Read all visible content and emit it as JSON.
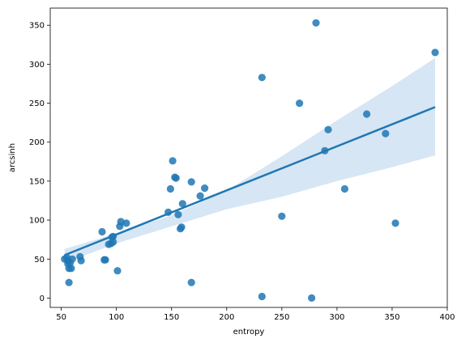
{
  "chart_data": {
    "type": "scatter",
    "xlabel": "entropy",
    "ylabel": "arcsinh",
    "xlim": [
      40,
      400
    ],
    "ylim": [
      -12,
      372
    ],
    "xticks": [
      50,
      100,
      150,
      200,
      250,
      300,
      350,
      400
    ],
    "yticks": [
      0,
      50,
      100,
      150,
      200,
      250,
      300,
      350
    ],
    "grid": false,
    "colors": {
      "points": "#1f77b4",
      "regression_line": "#1f77b4",
      "confidence_band": "#c6dbef"
    },
    "points": [
      {
        "x": 53,
        "y": 50
      },
      {
        "x": 55,
        "y": 52
      },
      {
        "x": 56,
        "y": 48
      },
      {
        "x": 56,
        "y": 44
      },
      {
        "x": 57,
        "y": 38
      },
      {
        "x": 57,
        "y": 20
      },
      {
        "x": 58,
        "y": 45
      },
      {
        "x": 59,
        "y": 38
      },
      {
        "x": 60,
        "y": 50
      },
      {
        "x": 67,
        "y": 53
      },
      {
        "x": 68,
        "y": 48
      },
      {
        "x": 87,
        "y": 85
      },
      {
        "x": 89,
        "y": 49
      },
      {
        "x": 90,
        "y": 49
      },
      {
        "x": 93,
        "y": 69
      },
      {
        "x": 95,
        "y": 70
      },
      {
        "x": 96,
        "y": 78
      },
      {
        "x": 97,
        "y": 79
      },
      {
        "x": 97,
        "y": 72
      },
      {
        "x": 101,
        "y": 35
      },
      {
        "x": 103,
        "y": 92
      },
      {
        "x": 104,
        "y": 98
      },
      {
        "x": 109,
        "y": 96
      },
      {
        "x": 147,
        "y": 110
      },
      {
        "x": 149,
        "y": 140
      },
      {
        "x": 151,
        "y": 176
      },
      {
        "x": 153,
        "y": 155
      },
      {
        "x": 154,
        "y": 154
      },
      {
        "x": 156,
        "y": 107
      },
      {
        "x": 158,
        "y": 89
      },
      {
        "x": 159,
        "y": 91
      },
      {
        "x": 160,
        "y": 121
      },
      {
        "x": 168,
        "y": 149
      },
      {
        "x": 168,
        "y": 20
      },
      {
        "x": 176,
        "y": 131
      },
      {
        "x": 180,
        "y": 141
      },
      {
        "x": 232,
        "y": 283
      },
      {
        "x": 232,
        "y": 2
      },
      {
        "x": 250,
        "y": 105
      },
      {
        "x": 266,
        "y": 250
      },
      {
        "x": 277,
        "y": 0
      },
      {
        "x": 281,
        "y": 353
      },
      {
        "x": 289,
        "y": 189
      },
      {
        "x": 292,
        "y": 216
      },
      {
        "x": 307,
        "y": 140
      },
      {
        "x": 327,
        "y": 236
      },
      {
        "x": 344,
        "y": 211
      },
      {
        "x": 353,
        "y": 96
      },
      {
        "x": 389,
        "y": 315
      }
    ],
    "regression": {
      "x_start": 53,
      "y_start": 55,
      "x_end": 389,
      "y_end": 245
    },
    "confidence_band": {
      "upper": [
        [
          53,
          63
        ],
        [
          100,
          83
        ],
        [
          150,
          106
        ],
        [
          200,
          138
        ],
        [
          250,
          182
        ],
        [
          300,
          228
        ],
        [
          350,
          272
        ],
        [
          389,
          308
        ]
      ],
      "lower": [
        [
          53,
          45
        ],
        [
          100,
          70
        ],
        [
          150,
          92
        ],
        [
          200,
          114
        ],
        [
          250,
          130
        ],
        [
          300,
          150
        ],
        [
          350,
          168
        ],
        [
          389,
          183
        ]
      ]
    }
  }
}
